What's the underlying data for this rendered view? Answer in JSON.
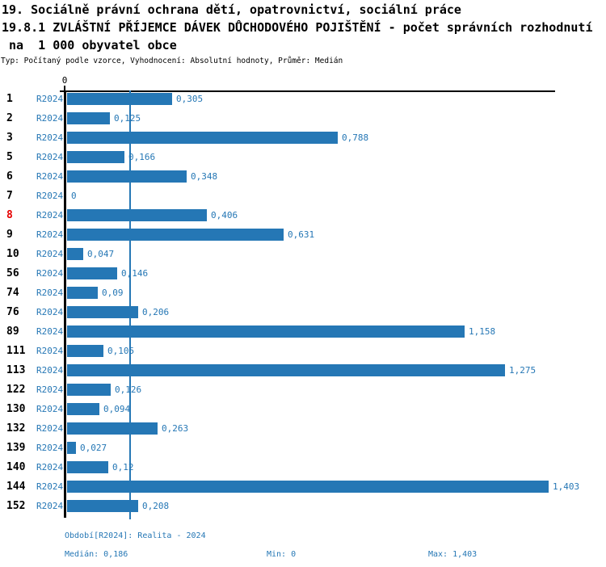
{
  "header": {
    "line1": "19. Sociálně právní ochrana dětí, opatrovnictví, sociální práce",
    "line2": "19.8.1 ZVLÁŠTNÍ PŘÍJEMCE DÁVEK DŮCHODOVÉHO POJIŠTĚNÍ - počet správních rozhodnutí",
    "line3": " na  1 000 obyvatel obce",
    "meta": "Typ: Počítaný podle vzorce, Vyhodnocení: Absolutní hodnoty, Průměr: Medián"
  },
  "chart_data": {
    "type": "bar",
    "orientation": "horizontal",
    "series_name": "R2024",
    "categories": [
      "1",
      "2",
      "3",
      "5",
      "6",
      "7",
      "8",
      "9",
      "10",
      "56",
      "74",
      "76",
      "89",
      "111",
      "113",
      "122",
      "130",
      "132",
      "139",
      "140",
      "144",
      "152"
    ],
    "values": [
      0.305,
      0.125,
      0.788,
      0.166,
      0.348,
      0,
      0.406,
      0.631,
      0.047,
      0.146,
      0.09,
      0.206,
      1.158,
      0.105,
      1.275,
      0.126,
      0.094,
      0.263,
      0.027,
      0.12,
      1.403,
      0.208
    ],
    "value_labels": [
      "0,305",
      "0,125",
      "0,788",
      "0,166",
      "0,348",
      "0",
      "0,406",
      "0,631",
      "0,047",
      "0,146",
      "0,09",
      "0,206",
      "1,158",
      "0,105",
      "1,275",
      "0,126",
      "0,094",
      "0,263",
      "0,027",
      "0,12",
      "1,403",
      "0,208"
    ],
    "highlighted_category": "8",
    "title": "19.8.1 ZVLÁŠTNÍ PŘÍJEMCE DÁVEK DŮCHODOVÉHO POJIŠTĚNÍ - počet správních rozhodnutí na 1 000 obyvatel obce",
    "xlabel": "",
    "ylabel": "",
    "axis": {
      "zero_tick_label": "0",
      "xlim": [
        0,
        1.44
      ],
      "median_line_value": 0.186,
      "gridlines": false
    },
    "legend_position": "none",
    "bar_color": "#2577b5",
    "highlight_color": "#e60000",
    "median": 0.186,
    "min": 0,
    "max": 1.403
  },
  "footer": {
    "period": "Období[R2024]: Realita - 2024",
    "median": "Medián: 0,186",
    "min": "Min: 0",
    "max": "Max: 1,403"
  }
}
